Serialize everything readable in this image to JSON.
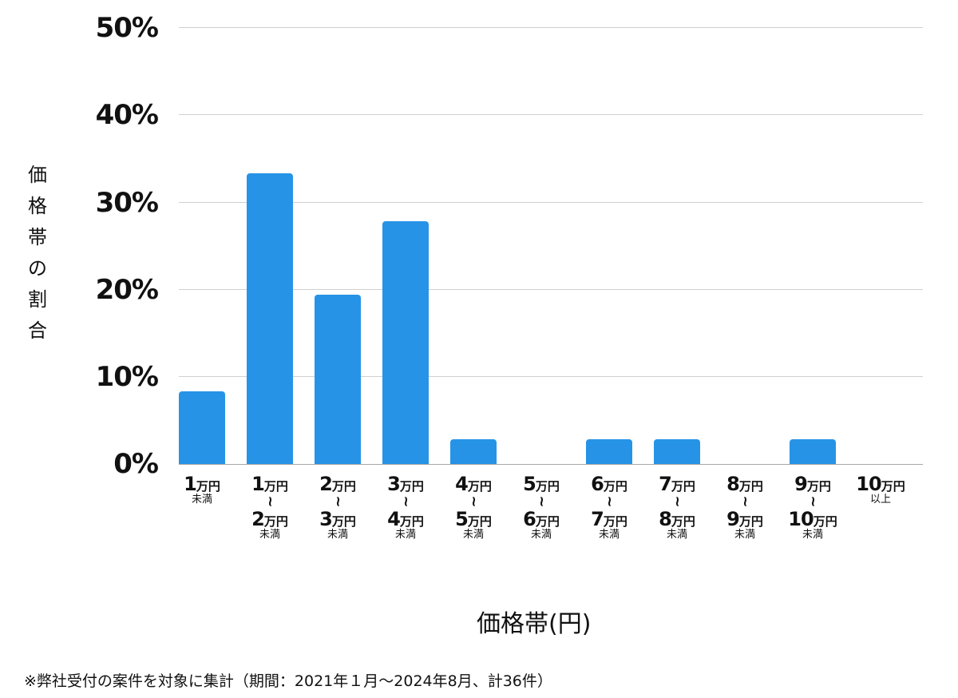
{
  "chart_data": {
    "type": "bar",
    "title": "",
    "xlabel": "価格帯(円)",
    "ylabel": "価格帯の割合",
    "ylim": [
      0,
      50
    ],
    "yticks": [
      "0%",
      "10%",
      "20%",
      "30%",
      "40%",
      "50%"
    ],
    "grid": true,
    "legend": null,
    "bar_color": "#2793e6",
    "categories": [
      "1万円未満",
      "1万円〜2万円未満",
      "2万円〜3万円未満",
      "3万円〜4万円未満",
      "4万円〜5万円未満",
      "5万円〜6万円未満",
      "6万円〜7万円未満",
      "7万円〜8万円未満",
      "8万円〜9万円未満",
      "9万円〜10万円未満",
      "10万円以上"
    ],
    "values": [
      8.3,
      33.3,
      19.4,
      27.8,
      2.8,
      0,
      2.8,
      2.8,
      0,
      2.8,
      0
    ],
    "counts_estimated": [
      3,
      12,
      7,
      10,
      1,
      0,
      1,
      1,
      0,
      1,
      0
    ],
    "note": "※弊社受付の案件を対象に集計（期間：2021年１月〜2024年8月、計36件）"
  },
  "axis": {
    "y_label_chars": [
      "価",
      "格",
      "帯",
      "の",
      "割",
      "合"
    ],
    "x_label": "価格帯(円)",
    "ticks": [
      "50%",
      "40%",
      "30%",
      "20%",
      "10%",
      "0%"
    ]
  },
  "xcats": [
    {
      "from_num": "1",
      "from_unit": "万円",
      "to_num": "",
      "to_unit": "",
      "suffix": "未満"
    },
    {
      "from_num": "1",
      "from_unit": "万円",
      "to_num": "2",
      "to_unit": "万円",
      "suffix": "未満"
    },
    {
      "from_num": "2",
      "from_unit": "万円",
      "to_num": "3",
      "to_unit": "万円",
      "suffix": "未満"
    },
    {
      "from_num": "3",
      "from_unit": "万円",
      "to_num": "4",
      "to_unit": "万円",
      "suffix": "未満"
    },
    {
      "from_num": "4",
      "from_unit": "万円",
      "to_num": "5",
      "to_unit": "万円",
      "suffix": "未満"
    },
    {
      "from_num": "5",
      "from_unit": "万円",
      "to_num": "6",
      "to_unit": "万円",
      "suffix": "未満"
    },
    {
      "from_num": "6",
      "from_unit": "万円",
      "to_num": "7",
      "to_unit": "万円",
      "suffix": "未満"
    },
    {
      "from_num": "7",
      "from_unit": "万円",
      "to_num": "8",
      "to_unit": "万円",
      "suffix": "未満"
    },
    {
      "from_num": "8",
      "from_unit": "万円",
      "to_num": "9",
      "to_unit": "万円",
      "suffix": "未満"
    },
    {
      "from_num": "9",
      "from_unit": "万円",
      "to_num": "10",
      "to_unit": "万円",
      "suffix": "未満"
    },
    {
      "from_num": "10",
      "from_unit": "万円",
      "to_num": "",
      "to_unit": "",
      "suffix": "以上"
    }
  ],
  "tilde_glyph": "∫",
  "footnote": "※弊社受付の案件を対象に集計（期間：2021年１月〜2024年8月、計36件）"
}
